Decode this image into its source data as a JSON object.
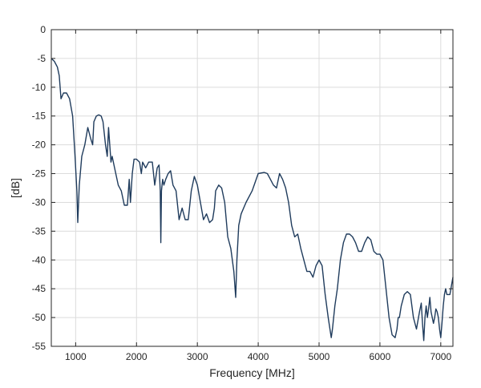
{
  "chart_data": {
    "type": "line",
    "title": "",
    "xlabel": "Frequency [MHz]",
    "ylabel": "[dB]",
    "xlim": [
      600,
      7200
    ],
    "ylim": [
      -55,
      0
    ],
    "xticks": [
      1000,
      2000,
      3000,
      4000,
      5000,
      6000,
      7000
    ],
    "xtick_labels": [
      "1000",
      "2000",
      "3000",
      "4000",
      "5000",
      "6000",
      "7000"
    ],
    "yticks": [
      0,
      -5,
      -10,
      -15,
      -20,
      -25,
      -30,
      -35,
      -40,
      -45,
      -50,
      -55
    ],
    "ytick_labels": [
      "0",
      "-5",
      "-10",
      "-15",
      "-20",
      "-25",
      "-30",
      "-35",
      "-40",
      "-45",
      "-50",
      "-55"
    ],
    "grid": true,
    "line_color": "#1f3b5c",
    "series": [
      {
        "x": [
          600,
          650,
          700,
          730,
          760,
          800,
          850,
          900,
          950,
          990,
          1020,
          1035,
          1060,
          1100,
          1150,
          1200,
          1250,
          1280,
          1300,
          1340,
          1380,
          1420,
          1450,
          1490,
          1520,
          1540,
          1560,
          1580,
          1600,
          1640,
          1700,
          1750,
          1800,
          1850,
          1880,
          1900,
          1930,
          1960,
          2000,
          2050,
          2080,
          2100,
          2150,
          2200,
          2260,
          2300,
          2340,
          2370,
          2390,
          2400,
          2410,
          2430,
          2450,
          2480,
          2520,
          2560,
          2600,
          2650,
          2700,
          2750,
          2800,
          2850,
          2900,
          2950,
          3000,
          3050,
          3100,
          3150,
          3200,
          3250,
          3280,
          3300,
          3350,
          3400,
          3450,
          3500,
          3550,
          3600,
          3630,
          3650,
          3680,
          3720,
          3800,
          3900,
          4000,
          4100,
          4150,
          4200,
          4250,
          4300,
          4350,
          4400,
          4450,
          4500,
          4550,
          4600,
          4650,
          4700,
          4750,
          4800,
          4850,
          4900,
          4950,
          5000,
          5050,
          5100,
          5150,
          5200,
          5220,
          5240,
          5260,
          5300,
          5350,
          5400,
          5450,
          5500,
          5550,
          5600,
          5650,
          5700,
          5750,
          5800,
          5850,
          5900,
          5950,
          6000,
          6050,
          6100,
          6150,
          6200,
          6250,
          6280,
          6300,
          6320,
          6350,
          6400,
          6450,
          6500,
          6550,
          6600,
          6650,
          6680,
          6700,
          6720,
          6740,
          6760,
          6780,
          6800,
          6820,
          6840,
          6860,
          6880,
          6900,
          6920,
          6940,
          6960,
          6980,
          7000,
          7020,
          7040,
          7060,
          7080,
          7100,
          7150,
          7200
        ],
        "y": [
          -5,
          -5.5,
          -6.5,
          -8,
          -12,
          -11,
          -11,
          -12,
          -15,
          -22,
          -28,
          -33.5,
          -27,
          -22,
          -20,
          -17,
          -19,
          -20,
          -16,
          -15,
          -14.8,
          -15,
          -16,
          -20,
          -22,
          -17,
          -20,
          -23,
          -22,
          -24,
          -27,
          -28,
          -30.5,
          -30.5,
          -26,
          -30,
          -25,
          -22.5,
          -22.5,
          -23,
          -25,
          -23,
          -24,
          -23,
          -23,
          -27,
          -24,
          -23.5,
          -28,
          -37,
          -28,
          -26,
          -27,
          -26,
          -25,
          -24.5,
          -27,
          -28,
          -33,
          -31,
          -33,
          -33,
          -28,
          -25.5,
          -27,
          -30,
          -33,
          -32,
          -33.5,
          -33,
          -31,
          -28,
          -27,
          -27.5,
          -30,
          -36,
          -38,
          -42,
          -46.5,
          -40,
          -34,
          -32,
          -30,
          -28,
          -25,
          -24.8,
          -25,
          -26,
          -27,
          -27.5,
          -25,
          -26,
          -27.5,
          -30,
          -34,
          -36,
          -35.5,
          -38,
          -40,
          -42,
          -42,
          -43,
          -41,
          -40,
          -41,
          -46,
          -50,
          -53.5,
          -52,
          -50,
          -48,
          -45,
          -40,
          -37,
          -35.5,
          -35.5,
          -36,
          -37,
          -38.5,
          -38.5,
          -37,
          -36,
          -36.5,
          -38.5,
          -39,
          -39,
          -40,
          -45,
          -50,
          -53,
          -53.5,
          -52,
          -50,
          -50,
          -48,
          -46,
          -45.5,
          -46,
          -50,
          -52,
          -49,
          -47.5,
          -51,
          -54,
          -50,
          -48,
          -50,
          -48.5,
          -46.5,
          -49,
          -50,
          -51,
          -50,
          -48.5,
          -49,
          -50,
          -52,
          -53.5,
          -51,
          -48,
          -46,
          -45,
          -46,
          -46,
          -43
        ]
      }
    ]
  }
}
